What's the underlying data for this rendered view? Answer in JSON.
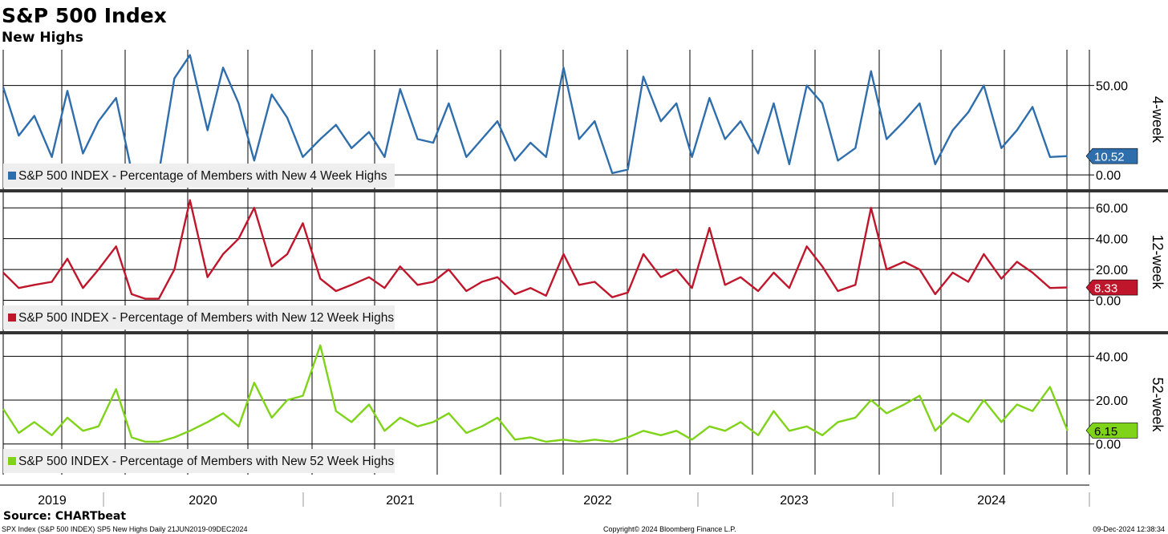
{
  "header": {
    "title": "S&P 500 Index",
    "subtitle": "New Highs"
  },
  "footer": {
    "source": "Source: CHARTbeat",
    "description": "SPX Index (S&P 500 INDEX) SP5 New Highs  Daily 21JUN2019-09DEC2024",
    "copyright": "Copyright© 2024 Bloomberg Finance L.P.",
    "timestamp": "09-Dec-2024 12:38:34"
  },
  "chart_data": [
    {
      "type": "line",
      "panel": "4-week",
      "side_label": "4-week",
      "legend": "S&P 500 INDEX - Percentage of Members with New 4 Week Highs",
      "color": "#2f6ead",
      "last_value": 10.52,
      "last_label": "10.52",
      "ylim": [
        -8,
        70
      ],
      "ticks": [
        {
          "v": 0,
          "label": "0.00"
        },
        {
          "v": 50,
          "label": "50.00"
        }
      ],
      "x": [
        2019.47,
        2019.55,
        2019.63,
        2019.72,
        2019.8,
        2019.88,
        2019.96,
        2020.05,
        2020.13,
        2020.2,
        2020.27,
        2020.35,
        2020.43,
        2020.52,
        2020.6,
        2020.68,
        2020.76,
        2020.85,
        2020.93,
        2021.01,
        2021.1,
        2021.18,
        2021.26,
        2021.35,
        2021.43,
        2021.51,
        2021.6,
        2021.68,
        2021.76,
        2021.85,
        2021.93,
        2022.01,
        2022.1,
        2022.18,
        2022.26,
        2022.35,
        2022.43,
        2022.51,
        2022.6,
        2022.68,
        2022.76,
        2022.85,
        2022.93,
        2023.01,
        2023.1,
        2023.18,
        2023.26,
        2023.35,
        2023.43,
        2023.51,
        2023.6,
        2023.68,
        2023.76,
        2023.85,
        2023.93,
        2024.01,
        2024.1,
        2024.18,
        2024.26,
        2024.35,
        2024.43,
        2024.51,
        2024.6,
        2024.68,
        2024.76,
        2024.85,
        2024.94
      ],
      "values": [
        49,
        22,
        33,
        10,
        47,
        12,
        30,
        43,
        2,
        1,
        1,
        54,
        67,
        25,
        60,
        40,
        8,
        45,
        32,
        10,
        20,
        28,
        15,
        24,
        10,
        48,
        20,
        18,
        40,
        10,
        20,
        30,
        8,
        18,
        10,
        60,
        20,
        30,
        1,
        3,
        55,
        30,
        40,
        10,
        43,
        20,
        30,
        12,
        40,
        6,
        50,
        40,
        8,
        15,
        58,
        20,
        30,
        40,
        6,
        25,
        35,
        50,
        15,
        25,
        38,
        10,
        10.52
      ]
    },
    {
      "type": "line",
      "panel": "12-week",
      "side_label": "12-week",
      "legend": "S&P 500 INDEX - Percentage of Members with New 12 Week Highs",
      "color": "#c0162c",
      "last_value": 8.33,
      "last_label": "8.33",
      "ylim": [
        -20,
        70
      ],
      "ticks": [
        {
          "v": 0,
          "label": "0.00"
        },
        {
          "v": 20,
          "label": "20.00"
        },
        {
          "v": 40,
          "label": "40.00"
        },
        {
          "v": 60,
          "label": "60.00"
        }
      ],
      "x": [
        2019.47,
        2019.55,
        2019.63,
        2019.72,
        2019.8,
        2019.88,
        2019.96,
        2020.05,
        2020.13,
        2020.2,
        2020.27,
        2020.35,
        2020.43,
        2020.52,
        2020.6,
        2020.68,
        2020.76,
        2020.85,
        2020.93,
        2021.01,
        2021.1,
        2021.18,
        2021.26,
        2021.35,
        2021.43,
        2021.51,
        2021.6,
        2021.68,
        2021.76,
        2021.85,
        2021.93,
        2022.01,
        2022.1,
        2022.18,
        2022.26,
        2022.35,
        2022.43,
        2022.51,
        2022.6,
        2022.68,
        2022.76,
        2022.85,
        2022.93,
        2023.01,
        2023.1,
        2023.18,
        2023.26,
        2023.35,
        2023.43,
        2023.51,
        2023.6,
        2023.68,
        2023.76,
        2023.85,
        2023.93,
        2024.01,
        2024.1,
        2024.18,
        2024.26,
        2024.35,
        2024.43,
        2024.51,
        2024.6,
        2024.68,
        2024.76,
        2024.85,
        2024.94
      ],
      "values": [
        18,
        8,
        10,
        12,
        27,
        8,
        20,
        35,
        4,
        1,
        1,
        20,
        65,
        15,
        30,
        40,
        60,
        22,
        30,
        50,
        14,
        6,
        10,
        15,
        8,
        22,
        10,
        12,
        20,
        6,
        12,
        15,
        4,
        8,
        3,
        30,
        10,
        12,
        2,
        5,
        30,
        15,
        20,
        8,
        47,
        10,
        15,
        6,
        18,
        8,
        35,
        22,
        6,
        10,
        60,
        20,
        25,
        20,
        4,
        18,
        12,
        30,
        14,
        25,
        18,
        8,
        8.33
      ]
    },
    {
      "type": "line",
      "panel": "52-week",
      "side_label": "52-week",
      "legend": "S&P 500 INDEX - Percentage of Members with New 52 Week Highs",
      "color": "#7fd319",
      "last_value": 6.15,
      "last_label": "6.15",
      "ylim": [
        -14,
        50
      ],
      "ticks": [
        {
          "v": 0,
          "label": "0.00"
        },
        {
          "v": 20,
          "label": "20.00"
        },
        {
          "v": 40,
          "label": "40.00"
        }
      ],
      "x": [
        2019.47,
        2019.55,
        2019.63,
        2019.72,
        2019.8,
        2019.88,
        2019.96,
        2020.05,
        2020.13,
        2020.2,
        2020.27,
        2020.35,
        2020.43,
        2020.52,
        2020.6,
        2020.68,
        2020.76,
        2020.85,
        2020.93,
        2021.01,
        2021.1,
        2021.18,
        2021.26,
        2021.35,
        2021.43,
        2021.51,
        2021.6,
        2021.68,
        2021.76,
        2021.85,
        2021.93,
        2022.01,
        2022.1,
        2022.18,
        2022.26,
        2022.35,
        2022.43,
        2022.51,
        2022.6,
        2022.68,
        2022.76,
        2022.85,
        2022.93,
        2023.01,
        2023.1,
        2023.18,
        2023.26,
        2023.35,
        2023.43,
        2023.51,
        2023.6,
        2023.68,
        2023.76,
        2023.85,
        2023.93,
        2024.01,
        2024.1,
        2024.18,
        2024.26,
        2024.35,
        2024.43,
        2024.51,
        2024.6,
        2024.68,
        2024.76,
        2024.85,
        2024.94
      ],
      "values": [
        16,
        5,
        10,
        4,
        12,
        6,
        8,
        25,
        3,
        1,
        1,
        3,
        6,
        10,
        14,
        8,
        28,
        12,
        20,
        22,
        45,
        15,
        10,
        18,
        6,
        12,
        8,
        10,
        14,
        5,
        8,
        12,
        2,
        3,
        1,
        2,
        1,
        2,
        1,
        3,
        6,
        4,
        6,
        2,
        8,
        6,
        10,
        4,
        15,
        6,
        8,
        4,
        10,
        12,
        20,
        14,
        18,
        22,
        6,
        14,
        10,
        20,
        10,
        18,
        15,
        26,
        6.15
      ]
    }
  ],
  "x_axis": {
    "labels": [
      {
        "x": 2019.8,
        "label": "2019"
      },
      {
        "x": 2020.5,
        "label": "2020"
      },
      {
        "x": 2021.5,
        "label": "2021"
      },
      {
        "x": 2022.5,
        "label": "2022"
      },
      {
        "x": 2023.5,
        "label": "2023"
      },
      {
        "x": 2024.5,
        "label": "2024"
      }
    ],
    "range": [
      2019.47,
      2024.97
    ]
  }
}
